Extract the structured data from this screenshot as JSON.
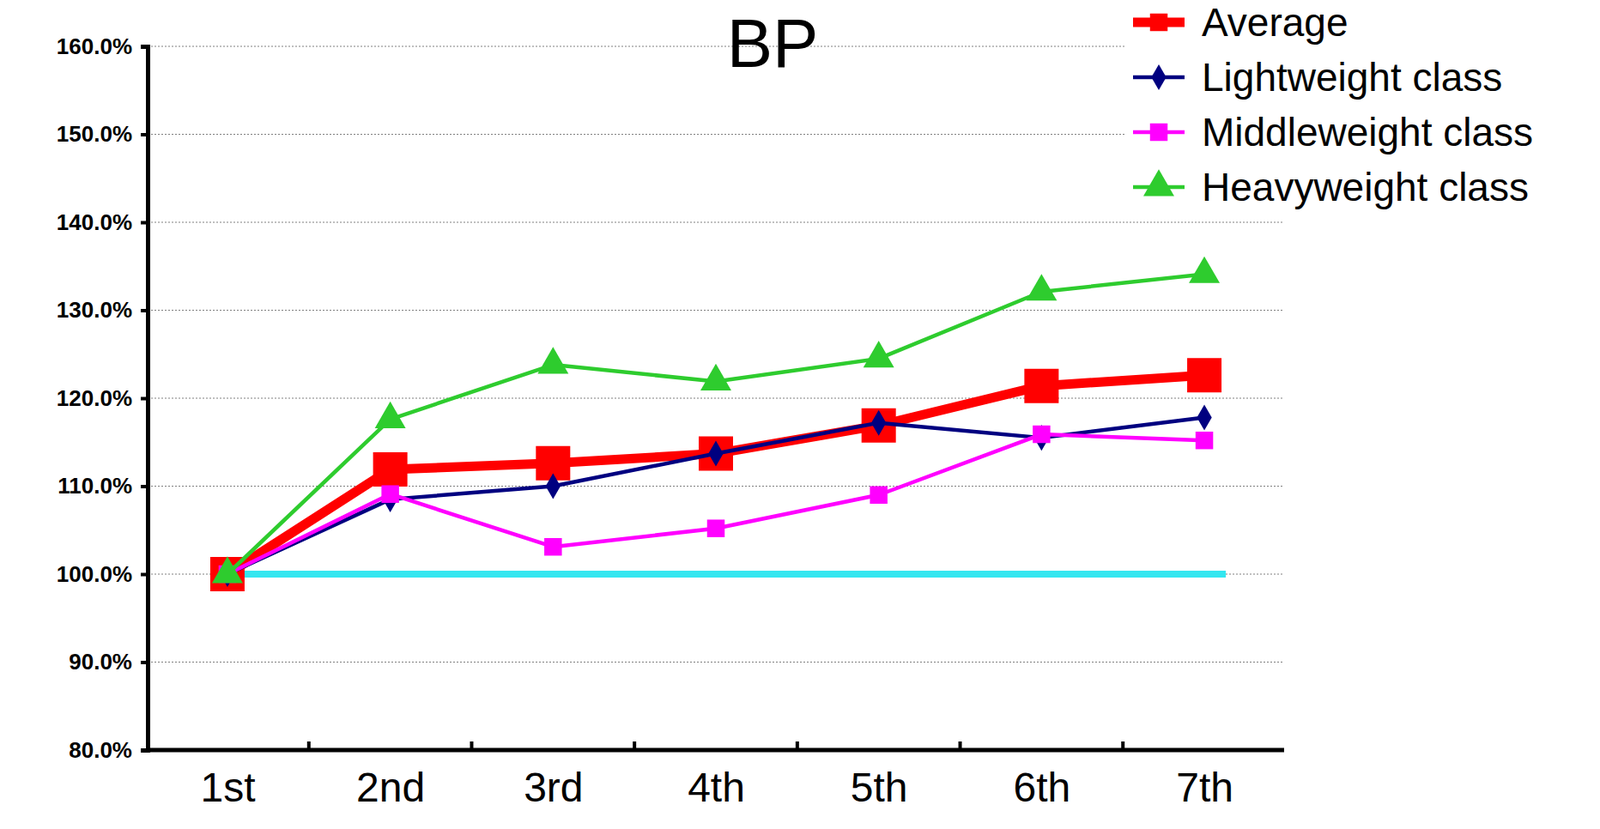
{
  "chart_data": {
    "type": "line",
    "title": "BP",
    "categories": [
      "1st",
      "2nd",
      "3rd",
      "4th",
      "5th",
      "6th",
      "7th"
    ],
    "series": [
      {
        "name": "Average",
        "color": "#ff0000",
        "marker": "square",
        "values": [
          100,
          111.9,
          112.6,
          113.7,
          116.9,
          121.4,
          122.6
        ]
      },
      {
        "name": "Lightweight class",
        "color": "#000080",
        "marker": "diamond",
        "values": [
          100,
          108.5,
          110.0,
          113.7,
          117.2,
          115.5,
          117.8
        ]
      },
      {
        "name": "Middleweight class",
        "color": "#ff00ff",
        "marker": "square",
        "values": [
          100,
          109.1,
          103.1,
          105.2,
          109.0,
          115.9,
          115.2
        ]
      },
      {
        "name": "Heavyweight class",
        "color": "#2ecc2e",
        "marker": "triangle",
        "values": [
          100,
          117.6,
          123.8,
          121.9,
          124.5,
          132.1,
          134.1
        ]
      }
    ],
    "ylim": [
      80,
      160
    ],
    "yticks": [
      {
        "value": 80,
        "label": "80.0%"
      },
      {
        "value": 90,
        "label": "90.0%"
      },
      {
        "value": 100,
        "label": "100.0%"
      },
      {
        "value": 110,
        "label": "110.0%"
      },
      {
        "value": 120,
        "label": "120.0%"
      },
      {
        "value": 130,
        "label": "130.0%"
      },
      {
        "value": 140,
        "label": "140.0%"
      },
      {
        "value": 150,
        "label": "150.0%"
      },
      {
        "value": 160,
        "label": "160.0%"
      }
    ],
    "reference_line": 100,
    "grid": true,
    "legend": "top-right"
  }
}
